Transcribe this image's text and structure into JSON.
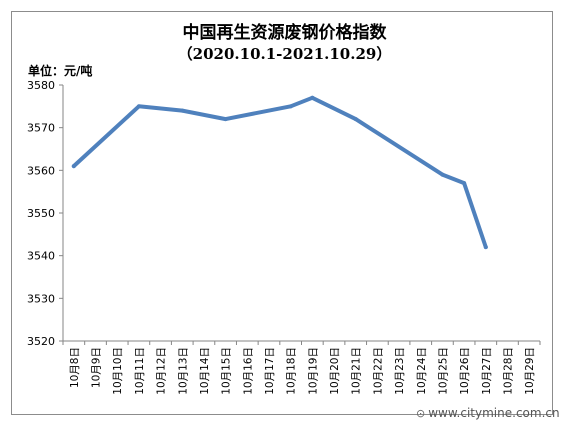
{
  "chart_data": {
    "type": "line",
    "title": "中国再生资源废钢价格指数",
    "subtitle": "（2020.10.1-2021.10.29）",
    "ylabel": "单位：元/吨",
    "xlabel": "",
    "ylim": [
      3520,
      3580
    ],
    "yticks": [
      3520,
      3530,
      3540,
      3550,
      3560,
      3570,
      3580
    ],
    "grid": false,
    "legend": "none",
    "categories": [
      "10月8日",
      "10月9日",
      "10月10日",
      "10月11日",
      "10月12日",
      "10月13日",
      "10月14日",
      "10月15日",
      "10月16日",
      "10月17日",
      "10月18日",
      "10月19日",
      "10月20日",
      "10月21日",
      "10月22日",
      "10月23日",
      "10月24日",
      "10月25日",
      "10月26日",
      "10月27日",
      "10月28日",
      "10月29日"
    ],
    "series": [
      {
        "values": [
          3561,
          null,
          null,
          3575,
          null,
          3574,
          null,
          3572,
          null,
          null,
          3575,
          3577,
          null,
          3572,
          null,
          null,
          null,
          3559,
          3557,
          3542,
          null,
          null
        ],
        "color": "#4f81bd"
      }
    ]
  },
  "watermark": {
    "logo": "CITY MINE",
    "text": "www.citymine.com.cn"
  }
}
